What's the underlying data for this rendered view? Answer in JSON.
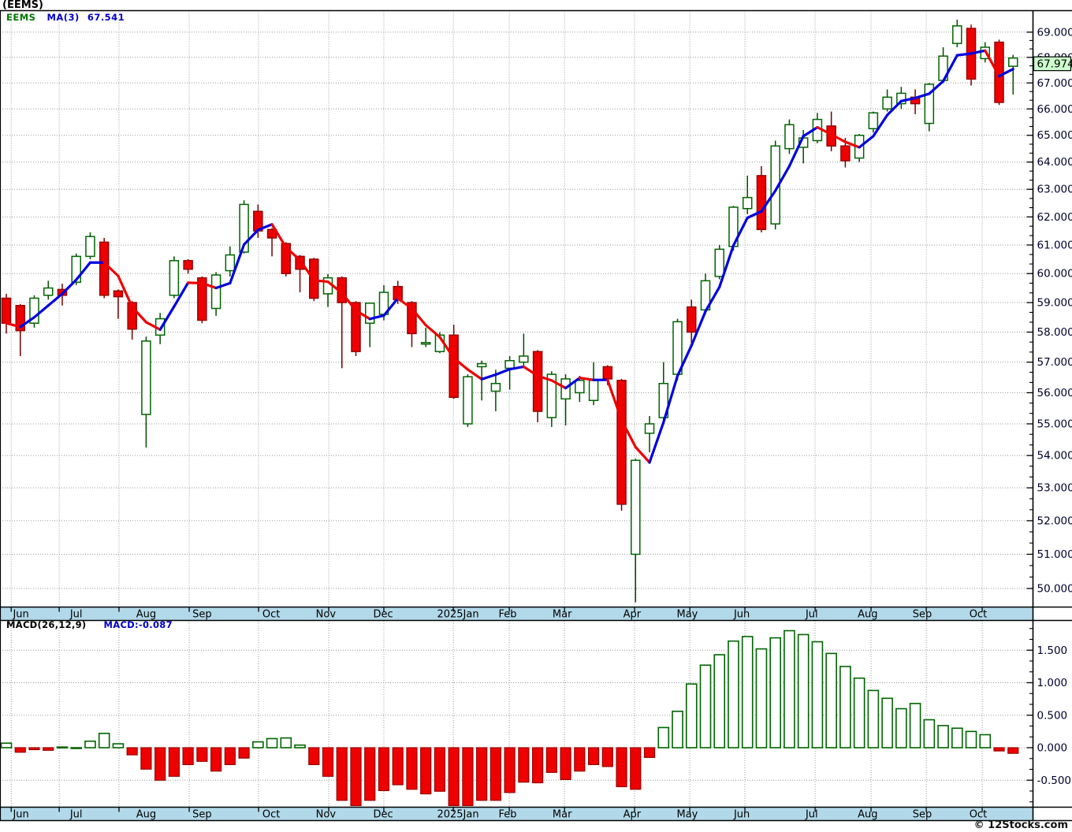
{
  "window_title": "(EEMS)",
  "legend": {
    "symbol": "EEMS",
    "ma_label": "MA(3)",
    "ma_value": "67.541"
  },
  "macd_legend": {
    "indicator": "MACD(26,12,9)",
    "value": "MACD:-0.087"
  },
  "last_price_badge": "67.974",
  "copyright": "© 12Stocks.com",
  "colors": {
    "up_border": "#006400",
    "up_fill": "#ffffff",
    "up_wick": "#004d00",
    "down_fill": "#ee0000",
    "down_border": "#990000",
    "down_wick": "#770000",
    "ma_up": "#0000e0",
    "ma_down": "#ee0000",
    "grid": "#999999",
    "axis_strip": "#b2d9e9",
    "strip_border": "#000000",
    "badge_bg": "#ccffcc",
    "badge_border": "#000000",
    "axis_text": "#000030",
    "month_text": "#000000"
  },
  "chart_data": {
    "type": "candlestick",
    "subtype": "weekly-ohlc-with-macd-histogram",
    "title": "(EEMS)",
    "scale": "log",
    "legend_position": "top-left",
    "grid": true,
    "price_axis": {
      "label_min": 50,
      "label_max": 69,
      "step": 1,
      "decimals": 3
    },
    "macd_axis": {
      "labels": [
        1.5,
        1.0,
        0.5,
        0.0,
        -0.5
      ],
      "decimals": 3
    },
    "ma_period": 3,
    "ma_last": 67.541,
    "macd_last": -0.087,
    "last_close": 67.974,
    "months": [
      {
        "label": "Jun",
        "grid": 1.35,
        "text": 2.05
      },
      {
        "label": "Jul",
        "grid": 4.78,
        "text": 6.0
      },
      {
        "label": "Aug",
        "grid": 9.06,
        "text": 11.0
      },
      {
        "label": "Sep",
        "grid": 14.08,
        "text": 15.0
      },
      {
        "label": "Oct",
        "grid": 19.04,
        "text": 19.95
      },
      {
        "label": "Nov",
        "grid": 24.06,
        "text": 23.85
      },
      {
        "label": "Dec",
        "grid": 28.0,
        "text": 27.95
      },
      {
        "label": "2025Jan",
        "grid": 32.97,
        "text": 33.3
      },
      {
        "label": "Feb",
        "grid": 36.97,
        "text": 36.85
      },
      {
        "label": "Mar",
        "grid": 40.92,
        "text": 40.75
      },
      {
        "label": "Apr",
        "grid": 45.93,
        "text": 45.75
      },
      {
        "label": "May",
        "grid": 49.88,
        "text": 49.7
      },
      {
        "label": "Jun",
        "grid": 53.82,
        "text": 53.6
      },
      {
        "label": "Jul",
        "grid": 58.84,
        "text": 58.6
      },
      {
        "label": "Aug",
        "grid": 62.84,
        "text": 62.6
      },
      {
        "label": "Sep",
        "grid": 66.79,
        "text": 66.5
      },
      {
        "label": "Oct",
        "grid": 70.79,
        "text": 70.5
      }
    ],
    "candles_ohlc": [
      [
        59.15,
        59.3,
        57.95,
        58.3
      ],
      [
        58.9,
        58.95,
        57.2,
        58.05
      ],
      [
        58.3,
        59.25,
        58.15,
        59.15
      ],
      [
        59.25,
        59.75,
        59.1,
        59.5
      ],
      [
        59.45,
        59.65,
        58.9,
        59.25
      ],
      [
        59.7,
        60.7,
        59.6,
        60.6
      ],
      [
        60.6,
        61.45,
        60.5,
        61.3
      ],
      [
        61.1,
        61.25,
        59.15,
        59.25
      ],
      [
        59.4,
        59.45,
        58.45,
        59.2
      ],
      [
        59.0,
        59.05,
        57.75,
        58.1
      ],
      [
        55.3,
        57.85,
        54.25,
        57.7
      ],
      [
        57.9,
        58.65,
        57.6,
        58.45
      ],
      [
        59.25,
        60.6,
        59.15,
        60.45
      ],
      [
        60.45,
        60.5,
        60.0,
        60.15
      ],
      [
        59.85,
        59.9,
        58.3,
        58.4
      ],
      [
        58.8,
        60.05,
        58.55,
        59.95
      ],
      [
        60.1,
        60.95,
        59.9,
        60.65
      ],
      [
        60.75,
        62.6,
        60.7,
        62.45
      ],
      [
        62.2,
        62.45,
        61.25,
        61.5
      ],
      [
        61.55,
        61.6,
        60.6,
        61.25
      ],
      [
        61.05,
        61.1,
        59.9,
        60.0
      ],
      [
        60.6,
        60.65,
        59.35,
        60.15
      ],
      [
        60.5,
        60.55,
        59.05,
        59.15
      ],
      [
        59.3,
        59.98,
        58.85,
        59.85
      ],
      [
        59.85,
        59.9,
        56.8,
        59.0
      ],
      [
        59.0,
        59.05,
        57.2,
        57.35
      ],
      [
        58.3,
        59.0,
        57.5,
        58.98
      ],
      [
        58.6,
        59.6,
        58.4,
        59.35
      ],
      [
        59.55,
        59.75,
        58.95,
        59.1
      ],
      [
        59.0,
        59.05,
        57.5,
        57.95
      ],
      [
        57.6,
        58.15,
        57.5,
        57.65
      ],
      [
        57.35,
        58.0,
        57.3,
        57.9
      ],
      [
        57.9,
        58.25,
        55.8,
        55.85
      ],
      [
        55.0,
        56.6,
        54.9,
        56.52
      ],
      [
        56.85,
        57.05,
        55.75,
        56.95
      ],
      [
        56.05,
        56.75,
        55.4,
        56.3
      ],
      [
        56.8,
        57.2,
        56.1,
        57.05
      ],
      [
        57.0,
        57.95,
        56.8,
        57.2
      ],
      [
        57.35,
        57.4,
        55.05,
        55.4
      ],
      [
        55.2,
        56.7,
        54.9,
        56.6
      ],
      [
        55.8,
        56.6,
        54.95,
        56.45
      ],
      [
        56.0,
        56.55,
        55.7,
        56.4
      ],
      [
        55.75,
        57.0,
        55.6,
        56.4
      ],
      [
        56.85,
        56.9,
        56.25,
        56.45
      ],
      [
        56.4,
        56.45,
        52.3,
        52.5
      ],
      [
        51.0,
        53.9,
        49.6,
        53.85
      ],
      [
        54.7,
        55.25,
        54.1,
        55.0
      ],
      [
        55.2,
        57.0,
        55.0,
        56.3
      ],
      [
        56.6,
        58.45,
        56.4,
        58.35
      ],
      [
        58.85,
        59.1,
        57.55,
        58.0
      ],
      [
        58.75,
        60.0,
        58.6,
        59.75
      ],
      [
        59.9,
        61.0,
        59.8,
        60.85
      ],
      [
        60.95,
        62.4,
        60.8,
        62.35
      ],
      [
        62.3,
        63.5,
        62.1,
        62.7
      ],
      [
        63.5,
        63.85,
        61.45,
        61.55
      ],
      [
        61.75,
        64.8,
        61.55,
        64.6
      ],
      [
        64.5,
        65.6,
        64.3,
        65.4
      ],
      [
        64.55,
        65.2,
        63.95,
        64.9
      ],
      [
        64.8,
        65.85,
        64.7,
        65.6
      ],
      [
        65.35,
        65.9,
        64.4,
        64.6
      ],
      [
        64.6,
        64.9,
        63.8,
        64.05
      ],
      [
        64.15,
        65.05,
        64.0,
        65.0
      ],
      [
        65.25,
        65.9,
        65.1,
        65.85
      ],
      [
        66.0,
        66.75,
        65.9,
        66.45
      ],
      [
        66.2,
        66.85,
        66.0,
        66.6
      ],
      [
        66.45,
        66.75,
        65.8,
        66.2
      ],
      [
        65.45,
        67.0,
        65.15,
        66.95
      ],
      [
        67.1,
        68.4,
        67.0,
        68.05
      ],
      [
        68.55,
        69.5,
        68.4,
        69.25
      ],
      [
        69.15,
        69.3,
        66.9,
        67.15
      ],
      [
        67.95,
        68.6,
        67.8,
        68.4
      ],
      [
        68.6,
        68.7,
        66.15,
        66.25
      ],
      [
        67.65,
        68.1,
        66.55,
        67.974
      ]
    ],
    "macd_histogram": [
      0.07,
      -0.07,
      -0.03,
      -0.04,
      0.01,
      0.0,
      0.1,
      0.22,
      0.06,
      -0.11,
      -0.33,
      -0.5,
      -0.44,
      -0.26,
      -0.21,
      -0.36,
      -0.26,
      -0.16,
      0.09,
      0.14,
      0.15,
      0.04,
      -0.26,
      -0.44,
      -0.81,
      -0.89,
      -0.81,
      -0.66,
      -0.57,
      -0.64,
      -0.71,
      -0.67,
      -0.89,
      -0.89,
      -0.81,
      -0.81,
      -0.69,
      -0.53,
      -0.54,
      -0.38,
      -0.49,
      -0.36,
      -0.26,
      -0.29,
      -0.6,
      -0.64,
      -0.15,
      0.31,
      0.56,
      0.98,
      1.27,
      1.43,
      1.64,
      1.71,
      1.52,
      1.69,
      1.8,
      1.74,
      1.63,
      1.45,
      1.25,
      1.07,
      0.88,
      0.76,
      0.6,
      0.68,
      0.43,
      0.34,
      0.3,
      0.25,
      0.2,
      -0.05,
      -0.087
    ]
  }
}
